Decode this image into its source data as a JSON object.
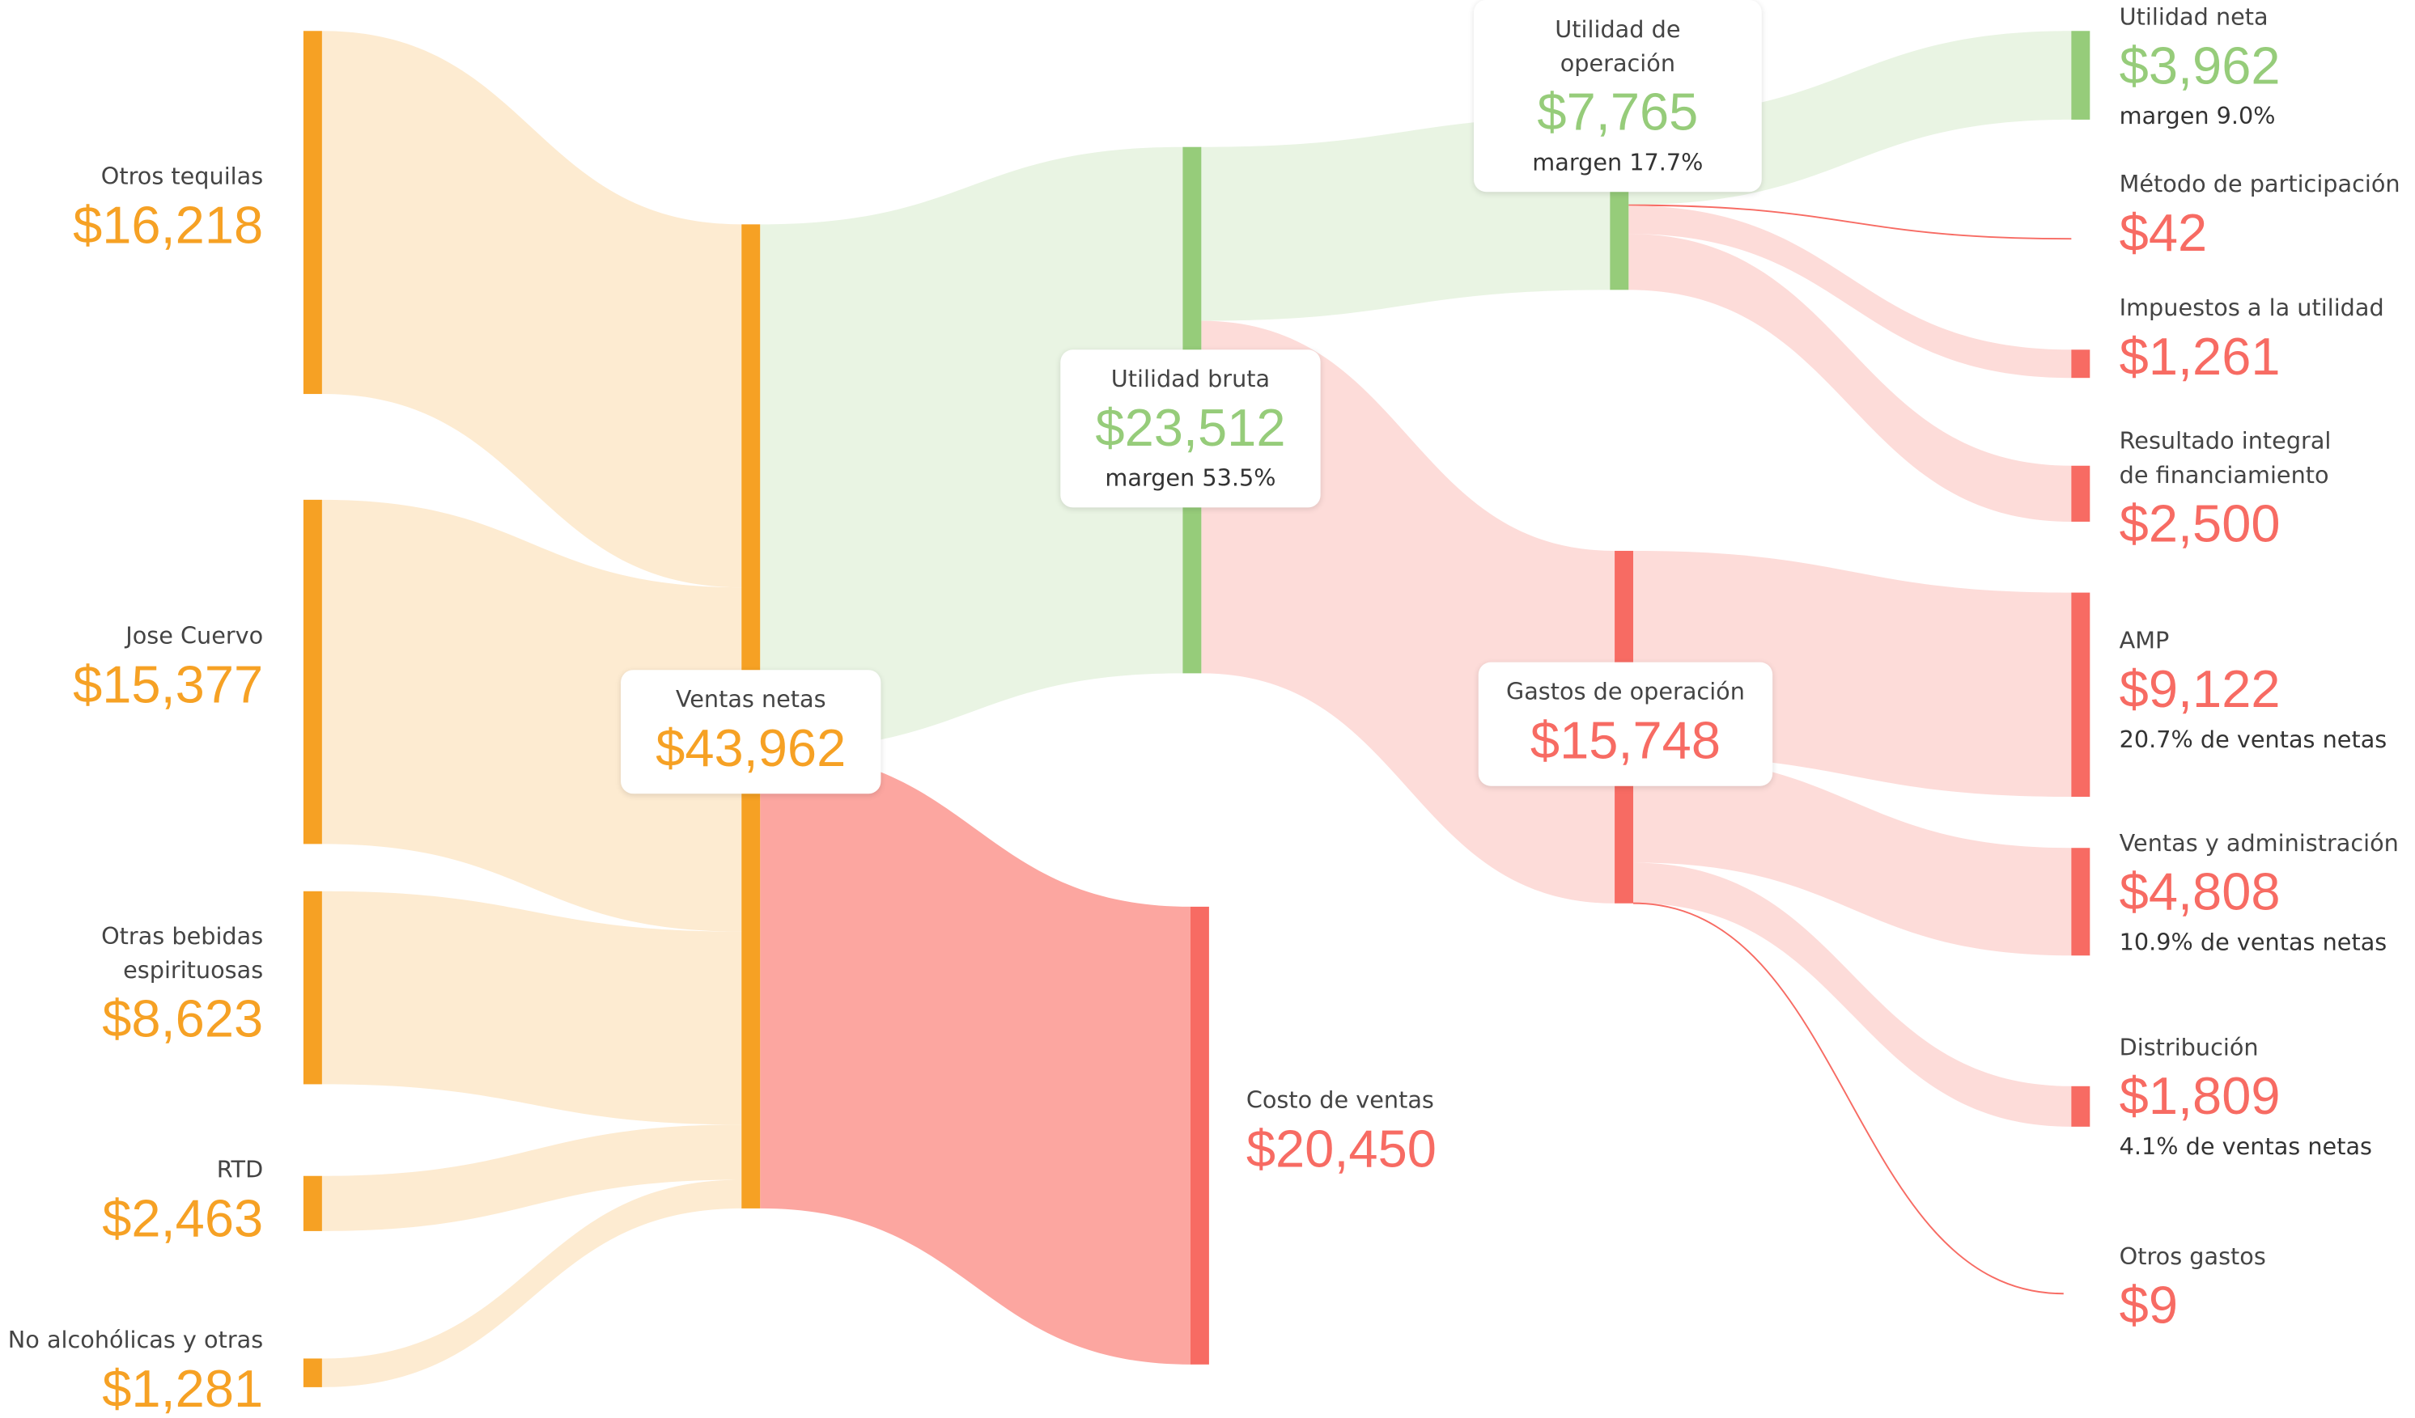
{
  "chart_data": {
    "type": "sankey",
    "nodes": [
      {
        "label": "Otros tequilas",
        "value": 16218,
        "value_label": "$16,218",
        "color": "#f6a124"
      },
      {
        "label": "Jose Cuervo",
        "value": 15377,
        "value_label": "$15,377",
        "color": "#f6a124"
      },
      {
        "label": "Otras bebidas espirituosas",
        "value": 8623,
        "value_label": "$8,623",
        "color": "#f6a124"
      },
      {
        "label": "RTD",
        "value": 2463,
        "value_label": "$2,463",
        "color": "#f6a124"
      },
      {
        "label": "No alcohólicas y otras",
        "value": 1281,
        "value_label": "$1,281",
        "color": "#f6a124"
      },
      {
        "label": "Ventas netas",
        "value": 43962,
        "value_label": "$43,962",
        "color": "#f6a124"
      },
      {
        "label": "Utilidad bruta",
        "value": 23512,
        "value_label": "$23,512",
        "note": "margen 53.5%",
        "color": "#96cc7a"
      },
      {
        "label": "Costo de ventas",
        "value": 20450,
        "value_label": "$20,450",
        "color": "#f76b63"
      },
      {
        "label": "Utilidad de operación",
        "value": 7765,
        "value_label": "$7,765",
        "note": "margen 17.7%",
        "color": "#96cc7a"
      },
      {
        "label": "Gastos de operación",
        "value": 15748,
        "value_label": "$15,748",
        "color": "#f76b63"
      },
      {
        "label": "Utilidad neta",
        "value": 3962,
        "value_label": "$3,962",
        "note": "margen 9.0%",
        "color": "#96cc7a"
      },
      {
        "label": "Método de participación",
        "value": 42,
        "value_label": "$42",
        "color": "#f76b63"
      },
      {
        "label": "Impuestos a la utilidad",
        "value": 1261,
        "value_label": "$1,261",
        "color": "#f76b63"
      },
      {
        "label": "Resultado integral de financiamiento",
        "value": 2500,
        "value_label": "$2,500",
        "color": "#f76b63"
      },
      {
        "label": "AMP",
        "value": 9122,
        "value_label": "$9,122",
        "note": "20.7% de ventas netas",
        "color": "#f76b63"
      },
      {
        "label": "Ventas y administración",
        "value": 4808,
        "value_label": "$4,808",
        "note": "10.9% de ventas netas",
        "color": "#f76b63"
      },
      {
        "label": "Distribución",
        "value": 1809,
        "value_label": "$1,809",
        "note": "4.1% de ventas netas",
        "color": "#f76b63"
      },
      {
        "label": "Otros gastos",
        "value": 9,
        "value_label": "$9",
        "color": "#f76b63"
      }
    ],
    "links": [
      {
        "source": 0,
        "target": 5,
        "value": 16218,
        "color": "#fdebd1"
      },
      {
        "source": 1,
        "target": 5,
        "value": 15377,
        "color": "#fdebd1"
      },
      {
        "source": 2,
        "target": 5,
        "value": 8623,
        "color": "#fdebd1"
      },
      {
        "source": 3,
        "target": 5,
        "value": 2463,
        "color": "#fdebd1"
      },
      {
        "source": 4,
        "target": 5,
        "value": 1281,
        "color": "#fdebd1"
      },
      {
        "source": 5,
        "target": 6,
        "value": 23512,
        "color": "#e9f4e3"
      },
      {
        "source": 5,
        "target": 7,
        "value": 20450,
        "color": "#fca6a0"
      },
      {
        "source": 6,
        "target": 8,
        "value": 7765,
        "color": "#e9f4e3"
      },
      {
        "source": 6,
        "target": 9,
        "value": 15748,
        "color": "#fddcd9"
      },
      {
        "source": 8,
        "target": 10,
        "value": 3962,
        "color": "#e9f4e3"
      },
      {
        "source": 8,
        "target": 11,
        "value": 42,
        "color": "#f76b63"
      },
      {
        "source": 8,
        "target": 12,
        "value": 1261,
        "color": "#fddcd9"
      },
      {
        "source": 8,
        "target": 13,
        "value": 2500,
        "color": "#fddcd9"
      },
      {
        "source": 9,
        "target": 14,
        "value": 9122,
        "color": "#fddcd9"
      },
      {
        "source": 9,
        "target": 15,
        "value": 4808,
        "color": "#fddcd9"
      },
      {
        "source": 9,
        "target": 16,
        "value": 1809,
        "color": "#fddcd9"
      },
      {
        "source": 9,
        "target": 17,
        "value": 9,
        "color": "#f76b63"
      }
    ]
  }
}
